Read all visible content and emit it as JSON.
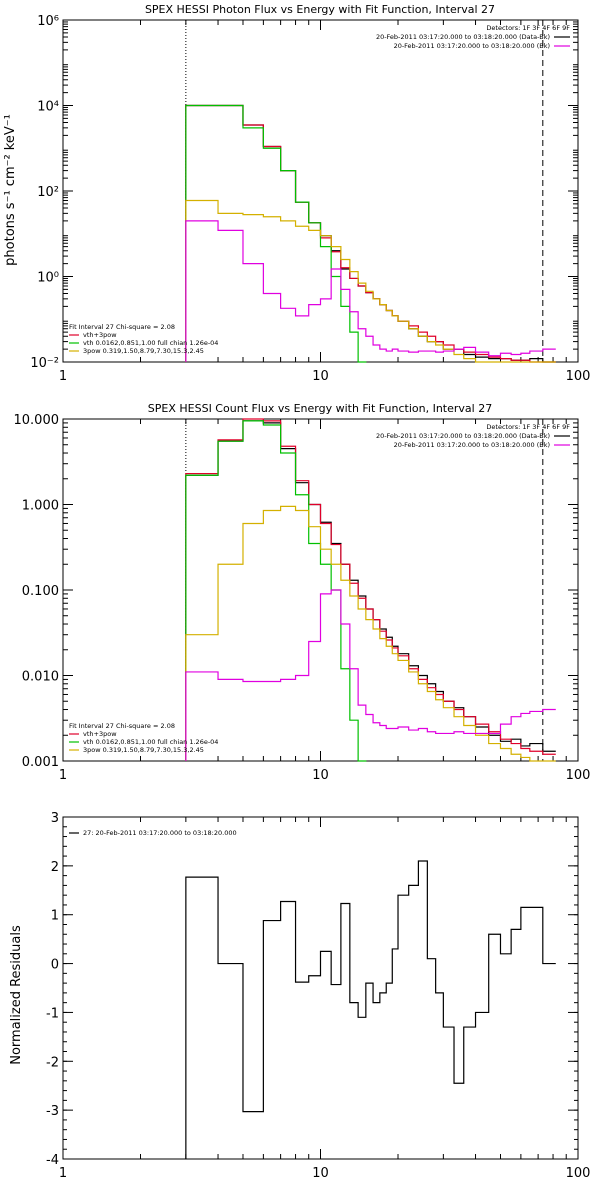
{
  "chart_data": [
    {
      "type": "line",
      "title": "SPEX HESSI Photon Flux vs Energy with Fit Function, Interval 27",
      "ylabel": "photons s⁻¹ cm⁻² keV⁻¹",
      "xlabel": "",
      "xscale": "log",
      "yscale": "log",
      "xlim": [
        1,
        100
      ],
      "ylim": [
        0.01,
        1000000
      ],
      "xticks": [
        1,
        10,
        100
      ],
      "xtick_labels": [
        "1",
        "10",
        "100"
      ],
      "yticks": [
        0.01,
        1,
        100,
        10000,
        1000000
      ],
      "ytick_labels": [
        "10⁻²",
        "10⁰",
        "10²",
        "10⁴",
        "10⁶"
      ],
      "vlines": [
        {
          "x": 3,
          "style": "dotted"
        },
        {
          "x": 73,
          "style": "dashed"
        }
      ],
      "legend_right": [
        "Detectors: 1F 3F 4F 6F 9F",
        "20-Feb-2011 03:17:20.000 to 03:18:20.000 (Data-Bk)",
        "20-Feb-2011 03:17:20.000 to 03:18:20.000 (Bk)"
      ],
      "legend_left": [
        "Fit Interval 27   Chi-square = 2.08",
        "vth+3pow",
        "vth 0.0162,0.851,1.00  full chian 1.26e-04",
        "3pow 0.319,1.50,8.79,7.30,15.3,2.45"
      ],
      "series": [
        {
          "name": "Data-Bk",
          "color": "#000000",
          "x": [
            3,
            4,
            5,
            6,
            7,
            8,
            9,
            10,
            11,
            12,
            13,
            14,
            15,
            16,
            17,
            18,
            19,
            20,
            22,
            24,
            26,
            28,
            30,
            33,
            36,
            40,
            45,
            50,
            55,
            60,
            65,
            73
          ],
          "values": [
            10000,
            10000,
            3500,
            1100,
            300,
            55,
            18,
            9,
            4,
            1.5,
            0.9,
            0.6,
            0.42,
            0.3,
            0.22,
            0.16,
            0.12,
            0.09,
            0.06,
            0.04,
            0.03,
            0.03,
            0.02,
            0.02,
            0.015,
            0.013,
            0.012,
            0.012,
            0.011,
            0.011,
            0.012,
            0.01
          ]
        },
        {
          "name": "vth+3pow",
          "color": "#e0002a",
          "x": [
            3,
            4,
            5,
            6,
            7,
            8,
            9,
            10,
            11,
            12,
            13,
            14,
            15,
            16,
            17,
            18,
            19,
            20,
            22,
            24,
            26,
            28,
            30,
            33,
            36,
            40,
            45,
            50,
            55,
            60,
            65,
            73
          ],
          "values": [
            10000,
            10000,
            3500,
            1100,
            300,
            55,
            18,
            8,
            3.8,
            1.6,
            0.9,
            0.6,
            0.42,
            0.3,
            0.22,
            0.16,
            0.12,
            0.09,
            0.07,
            0.05,
            0.04,
            0.03,
            0.025,
            0.02,
            0.017,
            0.015,
            0.013,
            0.012,
            0.011,
            0.011,
            0.01,
            0.01
          ]
        },
        {
          "name": "vth",
          "color": "#00c000",
          "x": [
            3,
            4,
            5,
            6,
            7,
            8,
            9,
            10,
            11,
            12,
            13,
            14
          ],
          "values": [
            10000,
            10000,
            3000,
            1000,
            300,
            55,
            18,
            5,
            1,
            0.2,
            0.05,
            0.01
          ]
        },
        {
          "name": "3pow",
          "color": "#d4b000",
          "x": [
            3,
            4,
            5,
            6,
            7,
            8,
            9,
            10,
            11,
            12,
            13,
            14,
            15,
            16,
            17,
            18,
            19,
            20,
            22,
            24,
            26,
            28,
            30,
            33,
            36,
            40,
            45,
            50,
            55,
            60,
            65,
            73
          ],
          "values": [
            60,
            30,
            28,
            25,
            20,
            15,
            12,
            9,
            5,
            2.5,
            1.3,
            0.7,
            0.45,
            0.3,
            0.22,
            0.16,
            0.12,
            0.09,
            0.06,
            0.04,
            0.03,
            0.025,
            0.02,
            0.015,
            0.012,
            0.01,
            0.01,
            0.01,
            0.01,
            0.01,
            0.01,
            0.01
          ]
        },
        {
          "name": "Bk",
          "color": "#e000e0",
          "x": [
            3,
            4,
            5,
            6,
            7,
            8,
            9,
            10,
            11,
            12,
            13,
            14,
            15,
            16,
            17,
            18,
            19,
            20,
            22,
            24,
            26,
            28,
            30,
            33,
            36,
            40,
            45,
            50,
            55,
            60,
            65,
            73
          ],
          "values": [
            20,
            12,
            2,
            0.4,
            0.18,
            0.12,
            0.22,
            0.3,
            1.5,
            0.5,
            0.15,
            0.06,
            0.04,
            0.025,
            0.02,
            0.018,
            0.02,
            0.018,
            0.017,
            0.018,
            0.018,
            0.017,
            0.018,
            0.02,
            0.022,
            0.017,
            0.014,
            0.016,
            0.015,
            0.016,
            0.018,
            0.02
          ]
        }
      ]
    },
    {
      "type": "line",
      "title": "SPEX HESSI Count Flux vs Energy with Fit Function, Interval 27",
      "xlabel": "",
      "ylabel": "",
      "xscale": "log",
      "yscale": "log",
      "xlim": [
        1,
        100
      ],
      "ylim": [
        0.001,
        10
      ],
      "xticks": [
        1,
        10,
        100
      ],
      "xtick_labels": [
        "1",
        "10",
        "100"
      ],
      "yticks": [
        0.001,
        0.01,
        0.1,
        1,
        10
      ],
      "ytick_labels": [
        "0.001",
        "0.010",
        "0.100",
        "1.000",
        "10.000"
      ],
      "vlines": [
        {
          "x": 3,
          "style": "dotted"
        },
        {
          "x": 73,
          "style": "dashed"
        }
      ],
      "legend_right": [
        "Detectors: 1F 3F 4F 6F 9F",
        "20-Feb-2011 03:17:20.000 to 03:18:20.000 (Data-Bk)",
        "20-Feb-2011 03:17:20.000 to 03:18:20.000 (Bk)"
      ],
      "legend_left": [
        "Fit Interval 27   Chi-square = 2.08",
        "vth+3pow",
        "vth 0.0162,0.851,1.00  full chian 1.26e-04",
        "3pow 0.319,1.50,8.79,7.30,15.3,2.45"
      ],
      "series": [
        {
          "name": "Data-Bk",
          "color": "#000000",
          "x": [
            3,
            4,
            5,
            6,
            7,
            8,
            9,
            10,
            11,
            12,
            13,
            14,
            15,
            16,
            17,
            18,
            19,
            20,
            22,
            24,
            26,
            28,
            30,
            33,
            36,
            40,
            45,
            50,
            55,
            60,
            65,
            73
          ],
          "values": [
            2.2,
            5.5,
            9.5,
            9,
            4.5,
            1.8,
            1,
            0.62,
            0.35,
            0.2,
            0.13,
            0.085,
            0.06,
            0.045,
            0.035,
            0.028,
            0.022,
            0.018,
            0.013,
            0.01,
            0.008,
            0.0065,
            0.005,
            0.0042,
            0.0033,
            0.0025,
            0.002,
            0.0017,
            0.0018,
            0.0015,
            0.0016,
            0.0013
          ]
        },
        {
          "name": "vth+3pow",
          "color": "#e0002a",
          "x": [
            3,
            4,
            5,
            6,
            7,
            8,
            9,
            10,
            11,
            12,
            13,
            14,
            15,
            16,
            17,
            18,
            19,
            20,
            22,
            24,
            26,
            28,
            30,
            33,
            36,
            40,
            45,
            50,
            55,
            60,
            65,
            73
          ],
          "values": [
            2.3,
            5.7,
            10,
            9.5,
            4.8,
            1.9,
            1,
            0.6,
            0.34,
            0.2,
            0.12,
            0.08,
            0.06,
            0.045,
            0.033,
            0.026,
            0.021,
            0.017,
            0.012,
            0.009,
            0.0072,
            0.006,
            0.005,
            0.004,
            0.0033,
            0.0027,
            0.0022,
            0.0018,
            0.0016,
            0.0014,
            0.0013,
            0.0012
          ]
        },
        {
          "name": "vth",
          "color": "#00c000",
          "x": [
            3,
            4,
            5,
            6,
            7,
            8,
            9,
            10,
            11,
            12,
            13,
            14
          ],
          "values": [
            2.2,
            5.5,
            9.5,
            8.5,
            4,
            1.3,
            0.35,
            0.2,
            0.1,
            0.012,
            0.003,
            0.001
          ]
        },
        {
          "name": "3pow",
          "color": "#d4b000",
          "x": [
            3,
            4,
            5,
            6,
            7,
            8,
            9,
            10,
            11,
            12,
            13,
            14,
            15,
            16,
            17,
            18,
            19,
            20,
            22,
            24,
            26,
            28,
            30,
            33,
            36,
            40,
            45,
            50,
            55,
            60,
            65,
            73
          ],
          "values": [
            0.03,
            0.2,
            0.6,
            0.85,
            0.95,
            0.85,
            0.55,
            0.3,
            0.2,
            0.13,
            0.085,
            0.06,
            0.045,
            0.035,
            0.027,
            0.022,
            0.018,
            0.015,
            0.011,
            0.008,
            0.0065,
            0.0052,
            0.0042,
            0.0033,
            0.0026,
            0.002,
            0.0016,
            0.0014,
            0.0012,
            0.0011,
            0.001,
            0.001
          ]
        },
        {
          "name": "Bk",
          "color": "#e000e0",
          "x": [
            3,
            4,
            5,
            6,
            7,
            8,
            9,
            10,
            11,
            12,
            13,
            14,
            15,
            16,
            17,
            18,
            19,
            20,
            22,
            24,
            26,
            28,
            30,
            33,
            36,
            40,
            45,
            50,
            55,
            60,
            65,
            73
          ],
          "values": [
            0.011,
            0.009,
            0.0085,
            0.0085,
            0.009,
            0.01,
            0.025,
            0.09,
            0.1,
            0.04,
            0.012,
            0.0045,
            0.0035,
            0.0028,
            0.0026,
            0.0024,
            0.0024,
            0.0025,
            0.0023,
            0.0024,
            0.0022,
            0.0021,
            0.0021,
            0.0022,
            0.0021,
            0.0021,
            0.0021,
            0.0027,
            0.0033,
            0.0036,
            0.0038,
            0.004
          ]
        }
      ]
    },
    {
      "type": "line",
      "title": "",
      "ylabel": "Normalized Residuals",
      "xlabel": "",
      "xscale": "log",
      "yscale": "linear",
      "xlim": [
        1,
        100
      ],
      "ylim": [
        -4,
        3
      ],
      "xticks": [
        1,
        10,
        100
      ],
      "xtick_labels": [
        "1",
        "10",
        "100"
      ],
      "yticks": [
        -4,
        -3,
        -2,
        -1,
        0,
        1,
        2,
        3
      ],
      "ytick_labels": [
        "-4",
        "-3",
        "-2",
        "-1",
        "0",
        "1",
        "2",
        "3"
      ],
      "legend_left": [
        "27: 20-Feb-2011 03:17:20.000 to 03:18:20.000"
      ],
      "series": [
        {
          "name": "27: 20-Feb-2011 03:17:20.000 to 03:18:20.000",
          "color": "#000000",
          "x": [
            3,
            4,
            5,
            6,
            7,
            8,
            9,
            10,
            11,
            12,
            13,
            14,
            15,
            16,
            17,
            18,
            19,
            20,
            22,
            24,
            26,
            28,
            30,
            33,
            36,
            40,
            45,
            50,
            55,
            60,
            65,
            73
          ],
          "values": [
            1.77,
            0,
            -3.03,
            0.88,
            1.27,
            -0.38,
            -0.25,
            0.25,
            -0.43,
            1.23,
            -0.8,
            -1.1,
            -0.4,
            -0.8,
            -0.6,
            -0.4,
            0.3,
            1.4,
            1.6,
            2.1,
            0.1,
            -0.6,
            -1.3,
            -2.45,
            -1.3,
            -1.0,
            0.6,
            0.2,
            0.7,
            1.15,
            1.15,
            0
          ]
        }
      ]
    }
  ]
}
